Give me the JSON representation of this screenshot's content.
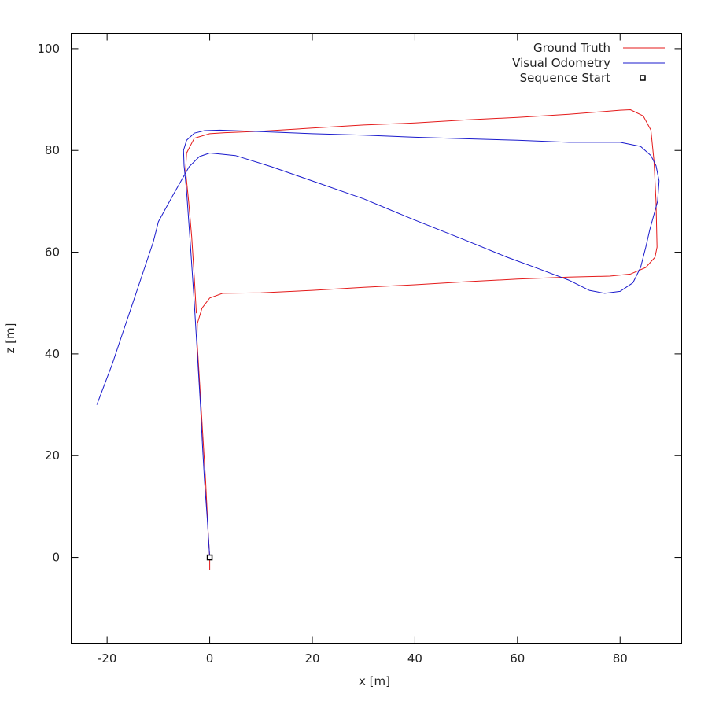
{
  "chart_data": {
    "type": "line",
    "xlabel": "x [m]",
    "ylabel": "z [m]",
    "xlim": [
      -27,
      92
    ],
    "ylim": [
      -17,
      103
    ],
    "xticks": [
      -20,
      0,
      20,
      40,
      60,
      80
    ],
    "yticks": [
      0,
      20,
      40,
      60,
      80,
      100
    ],
    "x_tick_labels": [
      "-20",
      "0",
      "20",
      "40",
      "60",
      "80"
    ],
    "y_tick_labels": [
      "0",
      "20",
      "40",
      "60",
      "80",
      "100"
    ],
    "grid": false,
    "legend_position": "top-right",
    "series": [
      {
        "name": "Ground Truth",
        "color": "#e41a1a",
        "points": [
          [
            0,
            -2.5
          ],
          [
            0,
            0
          ],
          [
            -0.3,
            5
          ],
          [
            -0.8,
            15
          ],
          [
            -1.4,
            25
          ],
          [
            -2,
            35
          ],
          [
            -2.5,
            43
          ],
          [
            -2.4,
            46
          ],
          [
            -1.5,
            49
          ],
          [
            0,
            51
          ],
          [
            2.5,
            51.9
          ],
          [
            10,
            52
          ],
          [
            20,
            52.5
          ],
          [
            30,
            53.1
          ],
          [
            40,
            53.6
          ],
          [
            50,
            54.2
          ],
          [
            60,
            54.7
          ],
          [
            70,
            55.1
          ],
          [
            78,
            55.3
          ],
          [
            82,
            55.7
          ],
          [
            85,
            57
          ],
          [
            86.8,
            59
          ],
          [
            87.2,
            61
          ],
          [
            87,
            70
          ],
          [
            86.6,
            78
          ],
          [
            86,
            84
          ],
          [
            84.5,
            86.8
          ],
          [
            82,
            88
          ],
          [
            80,
            87.9
          ],
          [
            70,
            87.1
          ],
          [
            60,
            86.5
          ],
          [
            50,
            86
          ],
          [
            40,
            85.4
          ],
          [
            30,
            85
          ],
          [
            20,
            84.4
          ],
          [
            10,
            83.8
          ],
          [
            3,
            83.5
          ],
          [
            0,
            83.3
          ],
          [
            -3,
            82.4
          ],
          [
            -4.5,
            79.5
          ],
          [
            -4.7,
            76
          ],
          [
            -4.1,
            70
          ],
          [
            -3.5,
            63
          ],
          [
            -3.0,
            55
          ],
          [
            -2.6,
            48
          ]
        ]
      },
      {
        "name": "Visual Odometry",
        "color": "#1a1acc",
        "points": [
          [
            0,
            0
          ],
          [
            -0.5,
            8
          ],
          [
            -1,
            15
          ],
          [
            -1.4,
            22
          ],
          [
            -1.8,
            30
          ],
          [
            -2.4,
            40
          ],
          [
            -3,
            50
          ],
          [
            -3.8,
            62
          ],
          [
            -4.5,
            72
          ],
          [
            -5,
            77
          ],
          [
            -5.1,
            80
          ],
          [
            -4.5,
            82
          ],
          [
            -3,
            83.4
          ],
          [
            -1,
            83.9
          ],
          [
            2,
            84
          ],
          [
            10,
            83.7
          ],
          [
            20,
            83.3
          ],
          [
            30,
            83
          ],
          [
            40,
            82.6
          ],
          [
            50,
            82.3
          ],
          [
            60,
            82
          ],
          [
            70,
            81.6
          ],
          [
            80,
            81.6
          ],
          [
            84,
            80.8
          ],
          [
            86,
            79
          ],
          [
            87,
            77
          ],
          [
            87.6,
            74
          ],
          [
            87.3,
            70
          ],
          [
            86.5,
            67
          ],
          [
            85.8,
            64.5
          ],
          [
            85,
            61
          ],
          [
            84,
            57
          ],
          [
            82.5,
            54
          ],
          [
            80,
            52.3
          ],
          [
            77,
            51.9
          ],
          [
            74,
            52.5
          ],
          [
            70,
            54.5
          ],
          [
            64,
            56.8
          ],
          [
            58,
            59
          ],
          [
            50,
            62.3
          ],
          [
            40,
            66.3
          ],
          [
            30,
            70.5
          ],
          [
            20,
            74
          ],
          [
            12,
            76.8
          ],
          [
            5,
            79
          ],
          [
            2,
            79.3
          ],
          [
            0,
            79.5
          ],
          [
            -2,
            78.8
          ],
          [
            -4,
            76.8
          ],
          [
            -7,
            71.5
          ],
          [
            -10,
            66
          ],
          [
            -11,
            62
          ],
          [
            -13,
            56
          ],
          [
            -15,
            50
          ],
          [
            -17,
            44
          ],
          [
            -19,
            38
          ],
          [
            -20.5,
            34
          ],
          [
            -22,
            30
          ]
        ]
      }
    ],
    "markers": [
      {
        "name": "Sequence Start",
        "x": 0,
        "y": 0,
        "symbol": "square"
      }
    ],
    "legend": [
      {
        "label": "Ground Truth",
        "kind": "line",
        "color": "#e41a1a"
      },
      {
        "label": "Visual Odometry",
        "kind": "line",
        "color": "#1a1acc"
      },
      {
        "label": "Sequence Start",
        "kind": "square",
        "color": "#000000"
      }
    ]
  }
}
